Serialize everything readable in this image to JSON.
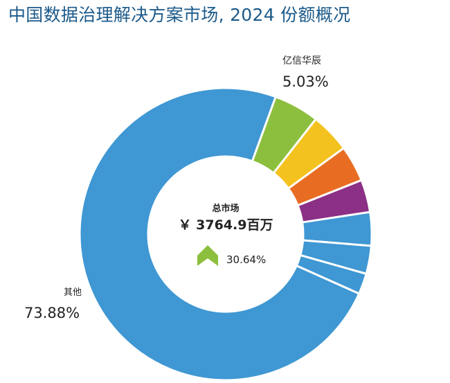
{
  "chart_data": {
    "type": "pie",
    "variant": "donut",
    "title": "中国数据治理解决方案市场, 2024 份额概况",
    "center": {
      "label": "总市场",
      "total_text": "￥ 3764.9百万",
      "growth_text": "30.64%",
      "growth_direction": "up"
    },
    "slices": [
      {
        "name": "亿信华辰",
        "value": 5.03,
        "value_text": "5.03%",
        "color": "#8dbf3e",
        "labeled": true
      },
      {
        "name": "",
        "value": 4.4,
        "color": "#f4c21e",
        "labeled": false
      },
      {
        "name": "",
        "value": 4.0,
        "color": "#e86d22",
        "labeled": false
      },
      {
        "name": "",
        "value": 3.6,
        "color": "#8c2f86",
        "labeled": false
      },
      {
        "name": "",
        "value": 3.7,
        "color": "#3f97d3",
        "labeled": false
      },
      {
        "name": "",
        "value": 3.1,
        "color": "#3f97d3",
        "labeled": false
      },
      {
        "name": "",
        "value": 2.3,
        "color": "#3f97d3",
        "labeled": false
      },
      {
        "name": "其他",
        "value": 73.88,
        "value_text": "73.88%",
        "color": "#3f97d3",
        "labeled": true
      }
    ],
    "colors": {
      "title": "#1c5a8a",
      "arrow": "#8dbf3e",
      "separator": "#ffffff"
    }
  }
}
